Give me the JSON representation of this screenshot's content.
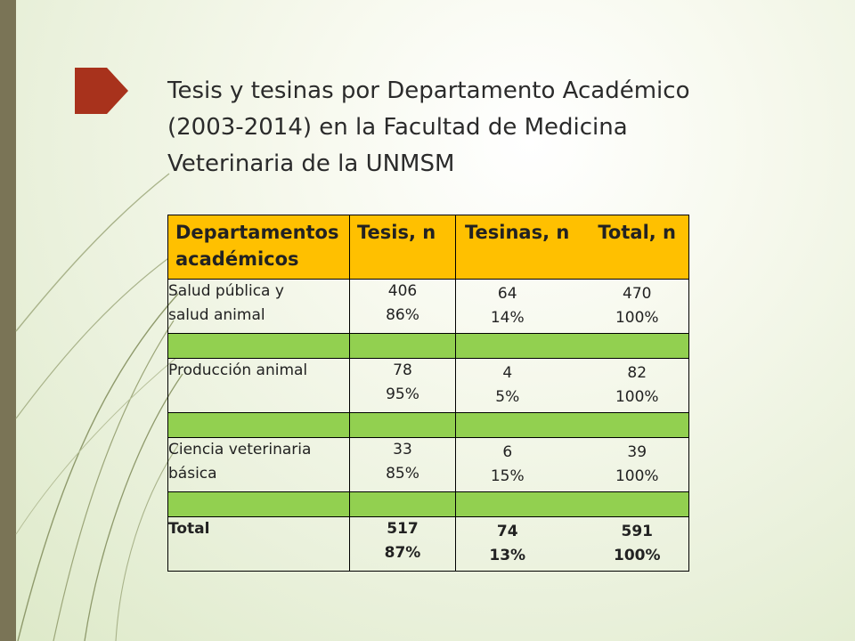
{
  "title_lines": [
    "Tesis y tesinas por Departamento Académico",
    "(2003-2014) en la Facultad de Medicina",
    "Veterinaria de la UNMSM"
  ],
  "table": {
    "headers": {
      "departamentos_line1": "Departamentos",
      "departamentos_line2": "académicos",
      "tesis": "Tesis, n",
      "tesinas": "Tesinas, n",
      "total": "Total, n"
    },
    "rows": [
      {
        "dept_line1": "Salud pública y",
        "dept_line2": "salud animal",
        "tesis_n": "406",
        "tesis_pct": "86%",
        "tesinas_n": "64",
        "tesinas_pct": "14%",
        "total_n": "470",
        "total_pct": "100%"
      },
      {
        "dept_line1": "Producción animal",
        "dept_line2": "",
        "tesis_n": "78",
        "tesis_pct": "95%",
        "tesinas_n": "4",
        "tesinas_pct": "5%",
        "total_n": "82",
        "total_pct": "100%"
      },
      {
        "dept_line1": "Ciencia veterinaria",
        "dept_line2": "básica",
        "tesis_n": "33",
        "tesis_pct": "85%",
        "tesinas_n": "6",
        "tesinas_pct": "15%",
        "total_n": "39",
        "total_pct": "100%"
      }
    ],
    "total": {
      "label": "Total",
      "tesis_n": "517",
      "tesis_pct": "87%",
      "tesinas_n": "74",
      "tesinas_pct": "13%",
      "total_n": "591",
      "total_pct": "100%"
    }
  },
  "colors": {
    "header_fill": "#ffc000",
    "spacer_fill": "#92d050",
    "marker_fill": "#a8321c",
    "left_bar": "#7a7456"
  }
}
